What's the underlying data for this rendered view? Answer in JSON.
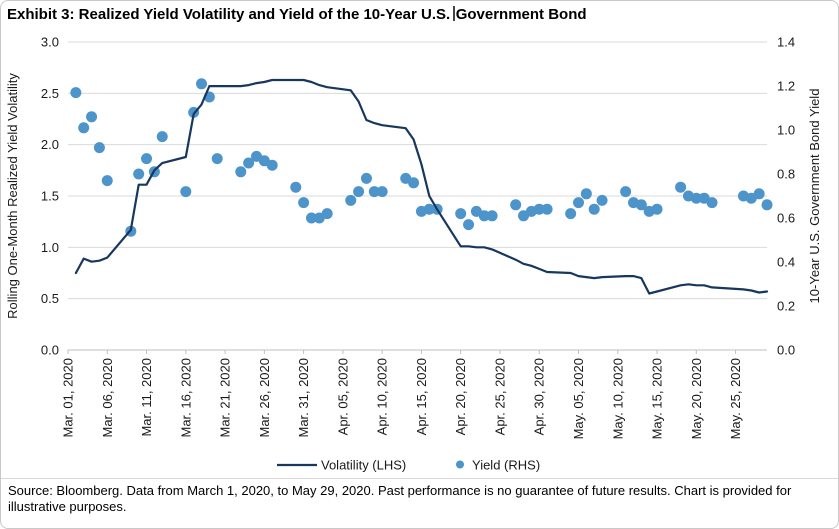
{
  "title": {
    "part1": "Exhibit 3: Realized Yield Volatility and Yield of the 10-Year U.S.",
    "part2": "Government Bond"
  },
  "footer": {
    "text": "Source: Bloomberg. Data from March 1, 2020, to May 29, 2020. Past performance is no guarantee of future results. Chart is provided for illustrative purposes."
  },
  "chart_data": {
    "type": "line",
    "title": "Exhibit 3: Realized Yield Volatility and Yield of the 10-Year U.S. Government Bond",
    "xlabel": "",
    "ylabel_left": "Rolling One-Month Realized Yield Volatility",
    "ylabel_right": "10-Year U.S. Government Bond Yield",
    "ylim_left": [
      0.0,
      3.0
    ],
    "ylim_right": [
      0.0,
      1.4
    ],
    "left_tick_labels": [
      "0.0",
      "0.5",
      "1.0",
      "1.5",
      "2.0",
      "2.5",
      "3.0"
    ],
    "right_tick_labels": [
      "0.0",
      "0.2",
      "0.4",
      "0.6",
      "0.8",
      "1.0",
      "1.2",
      "1.4"
    ],
    "x_tick_labels": [
      "Mar. 01, 2020",
      "Mar. 06, 2020",
      "Mar. 11, 2020",
      "Mar. 16, 2020",
      "Mar. 21, 2020",
      "Mar. 26, 2020",
      "Mar. 31, 2020",
      "Apr. 05, 2020",
      "Apr. 10, 2020",
      "Apr. 15, 2020",
      "Apr. 20, 2020",
      "Apr. 25, 2020",
      "Apr. 30, 2020",
      "May. 05, 2020",
      "May. 10, 2020",
      "May. 15, 2020",
      "May. 20, 2020",
      "May. 25, 2020"
    ],
    "x_tick_interval_days": 5,
    "x_range_days": [
      "Mar 01",
      "May 29"
    ],
    "grid": true,
    "legend_position": "bottom",
    "colors": {
      "volatility_line": "#17375e",
      "yield_dot": "#4d94ca",
      "gridline": "#d9d9d9",
      "axis": "#bfbfbf",
      "label_text": "#1a1a1a"
    },
    "series": [
      {
        "name": "Volatility (LHS)",
        "axis": "left",
        "style": "line",
        "points": [
          [
            "Mar 02",
            0.75
          ],
          [
            "Mar 03",
            0.89
          ],
          [
            "Mar 04",
            0.86
          ],
          [
            "Mar 05",
            0.87
          ],
          [
            "Mar 06",
            0.9
          ],
          [
            "Mar 09",
            1.17
          ],
          [
            "Mar 10",
            1.61
          ],
          [
            "Mar 11",
            1.61
          ],
          [
            "Mar 12",
            1.75
          ],
          [
            "Mar 13",
            1.82
          ],
          [
            "Mar 16",
            1.88
          ],
          [
            "Mar 17",
            2.3
          ],
          [
            "Mar 18",
            2.39
          ],
          [
            "Mar 19",
            2.57
          ],
          [
            "Mar 20",
            2.57
          ],
          [
            "Mar 23",
            2.57
          ],
          [
            "Mar 24",
            2.58
          ],
          [
            "Mar 25",
            2.6
          ],
          [
            "Mar 26",
            2.61
          ],
          [
            "Mar 27",
            2.63
          ],
          [
            "Mar 30",
            2.63
          ],
          [
            "Mar 31",
            2.63
          ],
          [
            "Apr 01",
            2.61
          ],
          [
            "Apr 02",
            2.58
          ],
          [
            "Apr 03",
            2.56
          ],
          [
            "Apr 06",
            2.53
          ],
          [
            "Apr 07",
            2.42
          ],
          [
            "Apr 08",
            2.24
          ],
          [
            "Apr 09",
            2.21
          ],
          [
            "Apr 10",
            2.19
          ],
          [
            "Apr 13",
            2.16
          ],
          [
            "Apr 14",
            2.05
          ],
          [
            "Apr 15",
            1.81
          ],
          [
            "Apr 16",
            1.5
          ],
          [
            "Apr 17",
            1.37
          ],
          [
            "Apr 20",
            1.01
          ],
          [
            "Apr 21",
            1.01
          ],
          [
            "Apr 22",
            1.0
          ],
          [
            "Apr 23",
            1.0
          ],
          [
            "Apr 24",
            0.98
          ],
          [
            "Apr 27",
            0.88
          ],
          [
            "Apr 28",
            0.84
          ],
          [
            "Apr 29",
            0.82
          ],
          [
            "Apr 30",
            0.79
          ],
          [
            "May 01",
            0.76
          ],
          [
            "May 04",
            0.75
          ],
          [
            "May 05",
            0.72
          ],
          [
            "May 06",
            0.71
          ],
          [
            "May 07",
            0.7
          ],
          [
            "May 08",
            0.71
          ],
          [
            "May 11",
            0.72
          ],
          [
            "May 12",
            0.72
          ],
          [
            "May 13",
            0.7
          ],
          [
            "May 14",
            0.55
          ],
          [
            "May 15",
            0.57
          ],
          [
            "May 18",
            0.63
          ],
          [
            "May 19",
            0.64
          ],
          [
            "May 20",
            0.63
          ],
          [
            "May 21",
            0.63
          ],
          [
            "May 22",
            0.61
          ],
          [
            "May 26",
            0.59
          ],
          [
            "May 27",
            0.58
          ],
          [
            "May 28",
            0.56
          ],
          [
            "May 29",
            0.57
          ]
        ]
      },
      {
        "name": "Yield (RHS)",
        "axis": "right",
        "style": "scatter",
        "points": [
          [
            "Mar 02",
            1.17
          ],
          [
            "Mar 03",
            1.01
          ],
          [
            "Mar 04",
            1.06
          ],
          [
            "Mar 05",
            0.92
          ],
          [
            "Mar 06",
            0.77
          ],
          [
            "Mar 09",
            0.54
          ],
          [
            "Mar 10",
            0.8
          ],
          [
            "Mar 11",
            0.87
          ],
          [
            "Mar 12",
            0.81
          ],
          [
            "Mar 13",
            0.97
          ],
          [
            "Mar 16",
            0.72
          ],
          [
            "Mar 17",
            1.08
          ],
          [
            "Mar 18",
            1.21
          ],
          [
            "Mar 19",
            1.15
          ],
          [
            "Mar 20",
            0.87
          ],
          [
            "Mar 23",
            0.81
          ],
          [
            "Mar 24",
            0.85
          ],
          [
            "Mar 25",
            0.88
          ],
          [
            "Mar 26",
            0.86
          ],
          [
            "Mar 27",
            0.84
          ],
          [
            "Mar 30",
            0.74
          ],
          [
            "Mar 31",
            0.67
          ],
          [
            "Apr 01",
            0.6
          ],
          [
            "Apr 02",
            0.6
          ],
          [
            "Apr 03",
            0.62
          ],
          [
            "Apr 06",
            0.68
          ],
          [
            "Apr 07",
            0.72
          ],
          [
            "Apr 08",
            0.78
          ],
          [
            "Apr 09",
            0.72
          ],
          [
            "Apr 10",
            0.72
          ],
          [
            "Apr 13",
            0.78
          ],
          [
            "Apr 14",
            0.76
          ],
          [
            "Apr 15",
            0.63
          ],
          [
            "Apr 16",
            0.64
          ],
          [
            "Apr 17",
            0.64
          ],
          [
            "Apr 20",
            0.62
          ],
          [
            "Apr 21",
            0.57
          ],
          [
            "Apr 22",
            0.63
          ],
          [
            "Apr 23",
            0.61
          ],
          [
            "Apr 24",
            0.61
          ],
          [
            "Apr 27",
            0.66
          ],
          [
            "Apr 28",
            0.61
          ],
          [
            "Apr 29",
            0.63
          ],
          [
            "Apr 30",
            0.64
          ],
          [
            "May 01",
            0.64
          ],
          [
            "May 04",
            0.62
          ],
          [
            "May 05",
            0.67
          ],
          [
            "May 06",
            0.71
          ],
          [
            "May 07",
            0.64
          ],
          [
            "May 08",
            0.68
          ],
          [
            "May 11",
            0.72
          ],
          [
            "May 12",
            0.67
          ],
          [
            "May 13",
            0.66
          ],
          [
            "May 14",
            0.63
          ],
          [
            "May 15",
            0.64
          ],
          [
            "May 18",
            0.74
          ],
          [
            "May 19",
            0.7
          ],
          [
            "May 20",
            0.69
          ],
          [
            "May 21",
            0.69
          ],
          [
            "May 22",
            0.67
          ],
          [
            "May 26",
            0.7
          ],
          [
            "May 27",
            0.69
          ],
          [
            "May 28",
            0.71
          ],
          [
            "May 29",
            0.66
          ]
        ]
      }
    ],
    "legend": [
      "Volatility (LHS)",
      "Yield (RHS)"
    ]
  }
}
